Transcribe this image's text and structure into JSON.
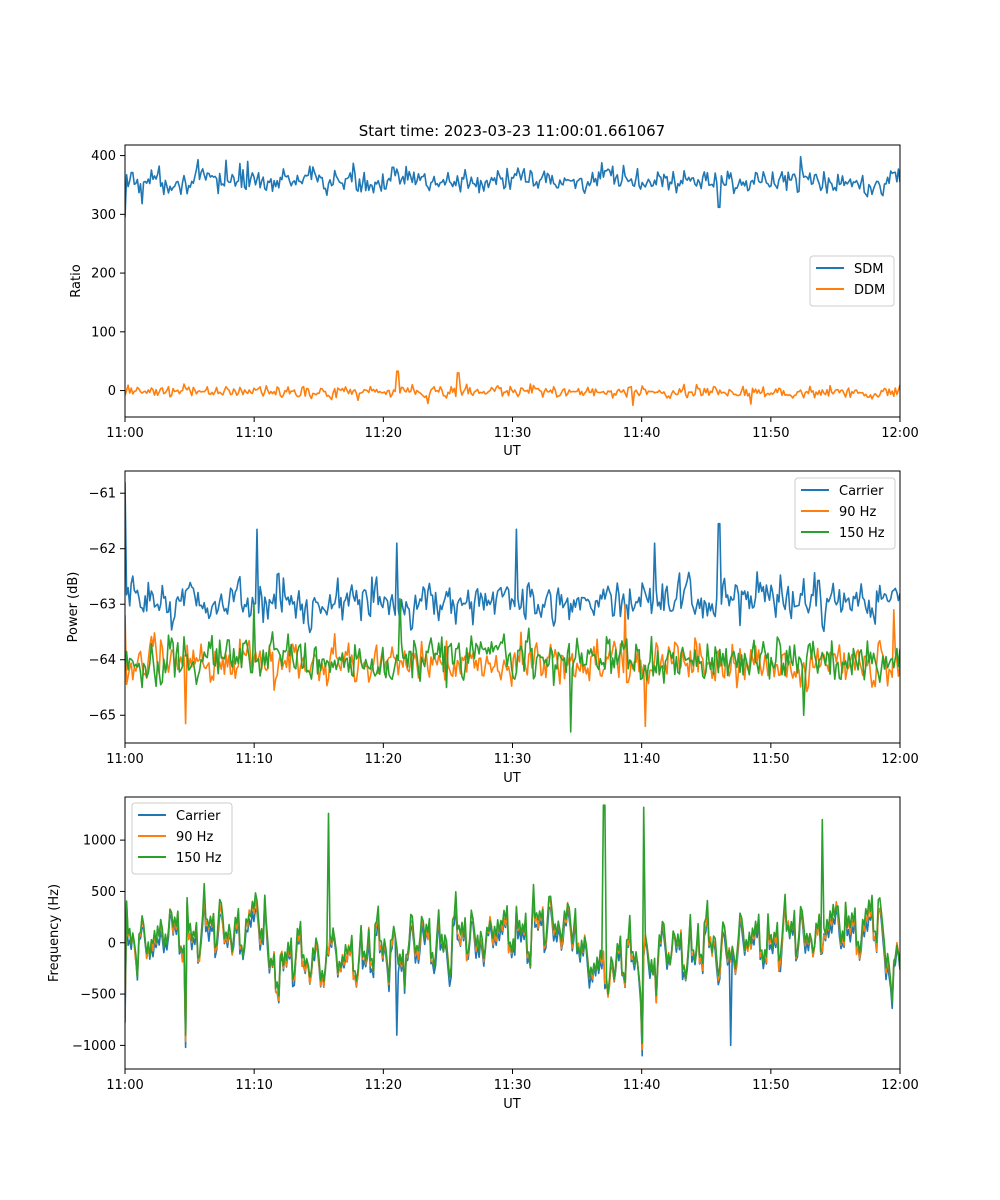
{
  "figure_title": "Start time: 2023-03-23 11:00:01.661067",
  "colors": {
    "blue": "#1f77b4",
    "orange": "#ff7f0e",
    "green": "#2ca02c"
  },
  "chart_data": [
    {
      "type": "line",
      "xlabel": "UT",
      "ylabel": "Ratio",
      "xlim": [
        "11:00",
        "12:00"
      ],
      "ylim": [
        -45,
        418
      ],
      "xticks": [
        "11:00",
        "11:10",
        "11:20",
        "11:30",
        "11:40",
        "11:50",
        "12:00"
      ],
      "yticks": [
        0,
        100,
        200,
        300,
        400
      ],
      "ytick_labels": [
        "0",
        "100",
        "200",
        "300",
        "400"
      ],
      "legend": "center-right",
      "grid": false,
      "series": [
        {
          "name": "SDM",
          "color": "#1f77b4",
          "mean": 357,
          "amp": 20,
          "start": 295,
          "spikes": [
            [
              7.8,
              392
            ],
            [
              9.5,
              390
            ],
            [
              52.3,
              398
            ],
            [
              46.0,
              312
            ],
            [
              1.3,
              318
            ]
          ]
        },
        {
          "name": "DDM",
          "color": "#ff7f0e",
          "mean": -2,
          "amp": 10,
          "start": -8,
          "spikes": [
            [
              21.1,
              33
            ],
            [
              25.8,
              30
            ],
            [
              23.4,
              -22
            ],
            [
              39.3,
              -25
            ],
            [
              48.5,
              -23
            ]
          ]
        }
      ]
    },
    {
      "type": "line",
      "xlabel": "UT",
      "ylabel": "Power (dB)",
      "xlim": [
        "11:00",
        "12:00"
      ],
      "ylim": [
        -65.5,
        -60.6
      ],
      "xticks": [
        "11:00",
        "11:10",
        "11:20",
        "11:30",
        "11:40",
        "11:50",
        "12:00"
      ],
      "yticks": [
        -61,
        -62,
        -63,
        -64,
        -65
      ],
      "ytick_labels": [
        "−61",
        "−62",
        "−63",
        "−64",
        "−65"
      ],
      "legend": "top-right",
      "grid": false,
      "series": [
        {
          "name": "Carrier",
          "color": "#1f77b4",
          "mean": -62.95,
          "amp": 0.35,
          "start": -60.8,
          "spikes": [
            [
              10.2,
              -61.65
            ],
            [
              21.0,
              -61.9
            ],
            [
              30.3,
              -61.65
            ],
            [
              46.0,
              -61.55
            ],
            [
              41.0,
              -61.9
            ]
          ]
        },
        {
          "name": "90 Hz",
          "color": "#ff7f0e",
          "mean": -64.05,
          "amp": 0.35,
          "start": -63.2,
          "spikes": [
            [
              4.7,
              -65.15
            ],
            [
              40.3,
              -65.2
            ],
            [
              38.7,
              -63.0
            ],
            [
              59.5,
              -63.1
            ]
          ]
        },
        {
          "name": "150 Hz",
          "color": "#2ca02c",
          "mean": -64.0,
          "amp": 0.38,
          "start": -64.2,
          "spikes": [
            [
              34.5,
              -65.3
            ],
            [
              10.0,
              -63.0
            ],
            [
              21.3,
              -62.9
            ],
            [
              52.5,
              -65.0
            ]
          ]
        }
      ]
    },
    {
      "type": "line",
      "xlabel": "UT",
      "ylabel": "Frequency (Hz)",
      "xlim": [
        "11:00",
        "12:00"
      ],
      "ylim": [
        -1230,
        1420
      ],
      "xticks": [
        "11:00",
        "11:10",
        "11:20",
        "11:30",
        "11:40",
        "11:50",
        "12:00"
      ],
      "yticks": [
        1000,
        500,
        0,
        -500,
        -1000
      ],
      "ytick_labels": [
        "1000",
        "500",
        "0",
        "−500",
        "−1000"
      ],
      "legend": "top-left",
      "grid": false,
      "series": [
        {
          "name": "Carrier",
          "color": "#1f77b4",
          "mean": -60,
          "amp": 390,
          "start": -780,
          "spikes": [
            [
              4.7,
              -1020
            ],
            [
              40.0,
              -1100
            ],
            [
              46.9,
              -1000
            ],
            [
              21.0,
              -900
            ]
          ]
        },
        {
          "name": "90 Hz",
          "color": "#ff7f0e",
          "mean": -20,
          "amp": 400,
          "start": -700,
          "spikes": [
            [
              4.7,
              -960
            ],
            [
              40.0,
              -1040
            ]
          ]
        },
        {
          "name": "150 Hz",
          "color": "#2ca02c",
          "mean": 10,
          "amp": 410,
          "start": -600,
          "spikes": [
            [
              15.8,
              1260
            ],
            [
              37.1,
              1340
            ],
            [
              40.2,
              1320
            ],
            [
              54.0,
              1200
            ],
            [
              4.7,
              -900
            ],
            [
              40.0,
              -980
            ]
          ]
        }
      ]
    }
  ]
}
